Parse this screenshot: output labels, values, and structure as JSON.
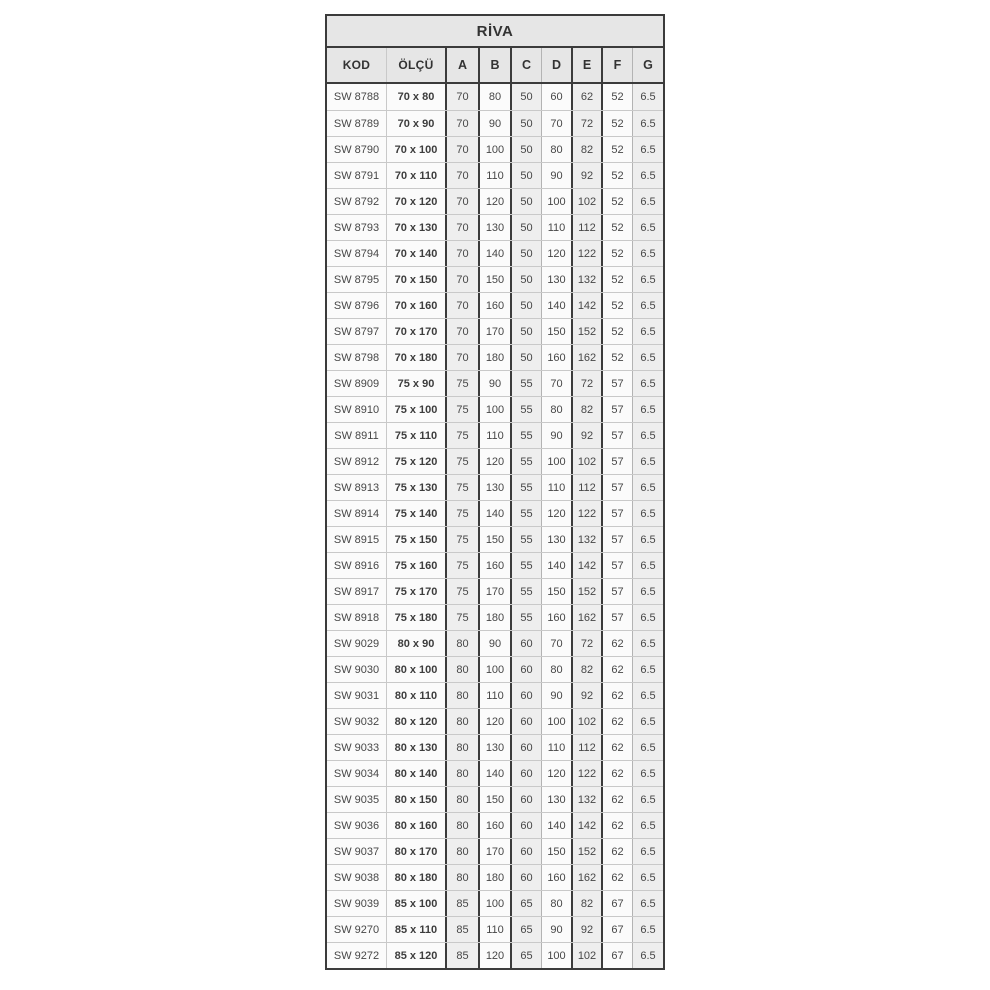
{
  "chart_data": {
    "type": "table",
    "title": "RİVA",
    "columns": [
      "KOD",
      "ÖLÇÜ",
      "A",
      "B",
      "C",
      "D",
      "E",
      "F",
      "G"
    ],
    "rows": [
      [
        "SW 8788",
        "70 x 80",
        "70",
        "80",
        "50",
        "60",
        "62",
        "52",
        "6.5"
      ],
      [
        "SW 8789",
        "70 x 90",
        "70",
        "90",
        "50",
        "70",
        "72",
        "52",
        "6.5"
      ],
      [
        "SW 8790",
        "70 x 100",
        "70",
        "100",
        "50",
        "80",
        "82",
        "52",
        "6.5"
      ],
      [
        "SW 8791",
        "70 x 110",
        "70",
        "110",
        "50",
        "90",
        "92",
        "52",
        "6.5"
      ],
      [
        "SW 8792",
        "70 x 120",
        "70",
        "120",
        "50",
        "100",
        "102",
        "52",
        "6.5"
      ],
      [
        "SW 8793",
        "70 x 130",
        "70",
        "130",
        "50",
        "110",
        "112",
        "52",
        "6.5"
      ],
      [
        "SW 8794",
        "70 x 140",
        "70",
        "140",
        "50",
        "120",
        "122",
        "52",
        "6.5"
      ],
      [
        "SW 8795",
        "70 x 150",
        "70",
        "150",
        "50",
        "130",
        "132",
        "52",
        "6.5"
      ],
      [
        "SW 8796",
        "70 x 160",
        "70",
        "160",
        "50",
        "140",
        "142",
        "52",
        "6.5"
      ],
      [
        "SW 8797",
        "70 x 170",
        "70",
        "170",
        "50",
        "150",
        "152",
        "52",
        "6.5"
      ],
      [
        "SW 8798",
        "70 x 180",
        "70",
        "180",
        "50",
        "160",
        "162",
        "52",
        "6.5"
      ],
      [
        "SW 8909",
        "75 x 90",
        "75",
        "90",
        "55",
        "70",
        "72",
        "57",
        "6.5"
      ],
      [
        "SW 8910",
        "75 x 100",
        "75",
        "100",
        "55",
        "80",
        "82",
        "57",
        "6.5"
      ],
      [
        "SW 8911",
        "75 x 110",
        "75",
        "110",
        "55",
        "90",
        "92",
        "57",
        "6.5"
      ],
      [
        "SW 8912",
        "75 x 120",
        "75",
        "120",
        "55",
        "100",
        "102",
        "57",
        "6.5"
      ],
      [
        "SW 8913",
        "75 x 130",
        "75",
        "130",
        "55",
        "110",
        "112",
        "57",
        "6.5"
      ],
      [
        "SW 8914",
        "75 x 140",
        "75",
        "140",
        "55",
        "120",
        "122",
        "57",
        "6.5"
      ],
      [
        "SW 8915",
        "75 x 150",
        "75",
        "150",
        "55",
        "130",
        "132",
        "57",
        "6.5"
      ],
      [
        "SW 8916",
        "75 x 160",
        "75",
        "160",
        "55",
        "140",
        "142",
        "57",
        "6.5"
      ],
      [
        "SW 8917",
        "75 x 170",
        "75",
        "170",
        "55",
        "150",
        "152",
        "57",
        "6.5"
      ],
      [
        "SW 8918",
        "75 x 180",
        "75",
        "180",
        "55",
        "160",
        "162",
        "57",
        "6.5"
      ],
      [
        "SW 9029",
        "80 x 90",
        "80",
        "90",
        "60",
        "70",
        "72",
        "62",
        "6.5"
      ],
      [
        "SW 9030",
        "80 x 100",
        "80",
        "100",
        "60",
        "80",
        "82",
        "62",
        "6.5"
      ],
      [
        "SW 9031",
        "80 x 110",
        "80",
        "110",
        "60",
        "90",
        "92",
        "62",
        "6.5"
      ],
      [
        "SW 9032",
        "80 x 120",
        "80",
        "120",
        "60",
        "100",
        "102",
        "62",
        "6.5"
      ],
      [
        "SW 9033",
        "80 x 130",
        "80",
        "130",
        "60",
        "110",
        "112",
        "62",
        "6.5"
      ],
      [
        "SW 9034",
        "80 x 140",
        "80",
        "140",
        "60",
        "120",
        "122",
        "62",
        "6.5"
      ],
      [
        "SW 9035",
        "80 x 150",
        "80",
        "150",
        "60",
        "130",
        "132",
        "62",
        "6.5"
      ],
      [
        "SW 9036",
        "80 x 160",
        "80",
        "160",
        "60",
        "140",
        "142",
        "62",
        "6.5"
      ],
      [
        "SW 9037",
        "80 x 170",
        "80",
        "170",
        "60",
        "150",
        "152",
        "62",
        "6.5"
      ],
      [
        "SW 9038",
        "80 x 180",
        "80",
        "180",
        "60",
        "160",
        "162",
        "62",
        "6.5"
      ],
      [
        "SW 9039",
        "85 x 100",
        "85",
        "100",
        "65",
        "80",
        "82",
        "67",
        "6.5"
      ],
      [
        "SW 9270",
        "85 x 110",
        "85",
        "110",
        "65",
        "90",
        "92",
        "67",
        "6.5"
      ],
      [
        "SW 9272",
        "85 x 120",
        "85",
        "120",
        "65",
        "100",
        "102",
        "67",
        "6.5"
      ]
    ]
  },
  "colors": {
    "header_bg": "#e6e6e6",
    "row_bg": "#fbfbfb",
    "shaded_col_bg": "#eeeeee",
    "border_dark": "#3b3b3b",
    "border_light": "#c9c9c9",
    "text": "#474747"
  }
}
